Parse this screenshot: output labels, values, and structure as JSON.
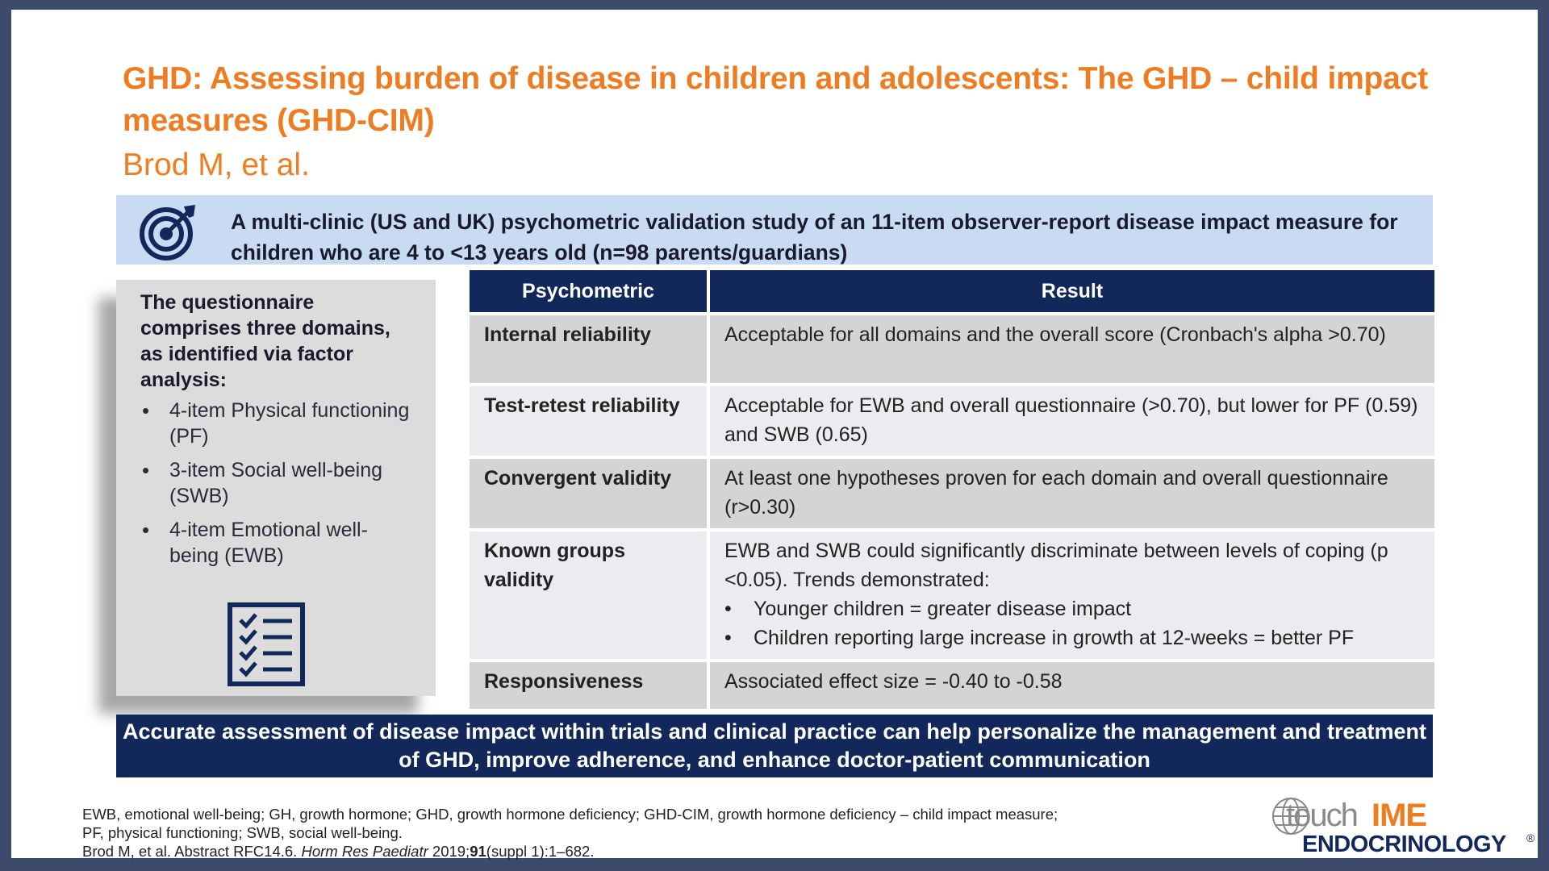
{
  "title": "GHD: Assessing burden of disease in children and adolescents: The GHD – child impact measures (GHD-CIM)",
  "subtitle": "Brod M, et al.",
  "banner": {
    "icon": "target-icon",
    "text": "A multi-clinic (US and UK) psychometric validation study of an 11-item observer-report disease impact measure for children who are 4 to <13 years old (n=98 parents/guardians)"
  },
  "left_panel": {
    "heading": "The questionnaire comprises three domains, as identified via factor analysis:",
    "items": [
      "4-item Physical functioning (PF)",
      "3-item Social well-being (SWB)",
      "4-item Emotional well-being (EWB)"
    ],
    "bullet": "•",
    "icon": "checklist-icon"
  },
  "table": {
    "headers": [
      "Psychometric",
      "Result"
    ],
    "rows": [
      {
        "psychometric": "Internal reliability",
        "result": "Acceptable for all domains and the overall score (Cronbach's alpha >0.70)"
      },
      {
        "psychometric": "Test-retest reliability",
        "result": "Acceptable for EWB and overall questionnaire (>0.70), but lower for PF (0.59) and SWB (0.65)"
      },
      {
        "psychometric": "Convergent validity",
        "result": "At least one hypotheses proven for each domain and overall questionnaire (r>0.30)"
      },
      {
        "psychometric": "Known groups validity",
        "result": "EWB and SWB could significantly discriminate between levels of coping (p <0.05). Trends demonstrated:",
        "bullets": [
          "Younger children = greater disease impact",
          "Children reporting large increase in growth at 12-weeks = better PF"
        ]
      },
      {
        "psychometric": "Responsiveness",
        "result": "Associated effect size = -0.40 to -0.58"
      }
    ]
  },
  "bottom_bar": "Accurate assessment of disease impact within trials and clinical practice can help personalize the management and treatment of GHD, improve adherence, and enhance doctor-patient communication",
  "footnotes": {
    "line1": "EWB, emotional well-being; GH, growth hormone; GHD, growth hormone deficiency; GHD-CIM, growth hormone deficiency – child impact measure;",
    "line2": "PF, physical functioning; SWB, social well-being.",
    "ref_prefix": "Brod M, et al. Abstract RFC14.6. ",
    "journal": "Horm Res Paediatr",
    "year": " 2019;",
    "volume": "91",
    "pages": "(suppl 1):1–682."
  },
  "logo": {
    "touch": "touch",
    "ime": "IME",
    "product": "ENDOCRINOLOGY",
    "reg": "®"
  },
  "colors": {
    "accent": "#ee7d22",
    "navy": "#12275a",
    "banner": "#c9daf3",
    "frame": "#3d4a6b"
  }
}
